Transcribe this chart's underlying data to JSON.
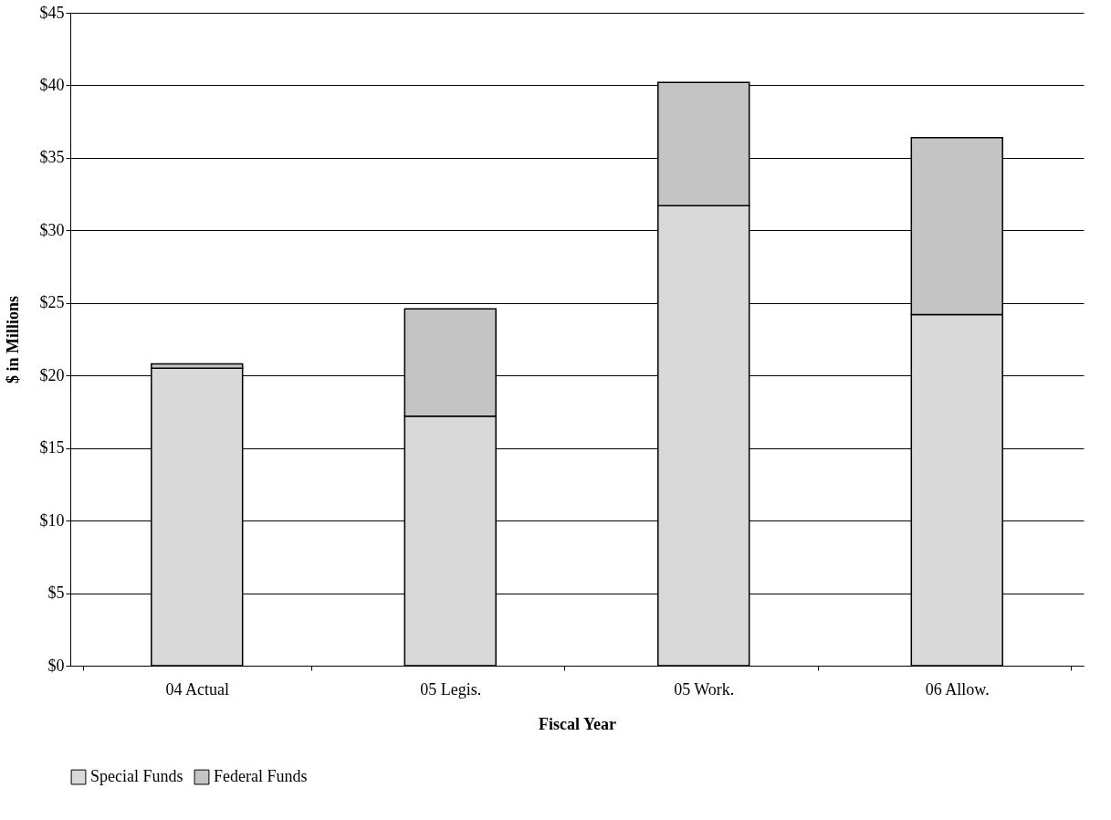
{
  "chart_data": {
    "type": "bar",
    "stacked": true,
    "xlabel": "Fiscal Year",
    "ylabel": "$ in Millions",
    "categories": [
      "04 Actual",
      "05 Legis.",
      "05 Work.",
      "06 Allow."
    ],
    "series": [
      {
        "name": "Special Funds",
        "color": "#d9d9d9",
        "values": [
          20.5,
          17.2,
          31.7,
          24.2
        ]
      },
      {
        "name": "Federal Funds",
        "color": "#c4c4c4",
        "values": [
          0.3,
          7.4,
          8.5,
          12.2
        ]
      }
    ],
    "ylim": [
      0,
      45
    ],
    "yticks": [
      {
        "value": 0,
        "label": "$0"
      },
      {
        "value": 5,
        "label": "$5"
      },
      {
        "value": 10,
        "label": "$10"
      },
      {
        "value": 15,
        "label": "$15"
      },
      {
        "value": 20,
        "label": "$20"
      },
      {
        "value": 25,
        "label": "$25"
      },
      {
        "value": 30,
        "label": "$30"
      },
      {
        "value": 35,
        "label": "$35"
      },
      {
        "value": 40,
        "label": "$40"
      },
      {
        "value": 45,
        "label": "$45"
      }
    ],
    "grid": "y",
    "legend": "bottom"
  }
}
